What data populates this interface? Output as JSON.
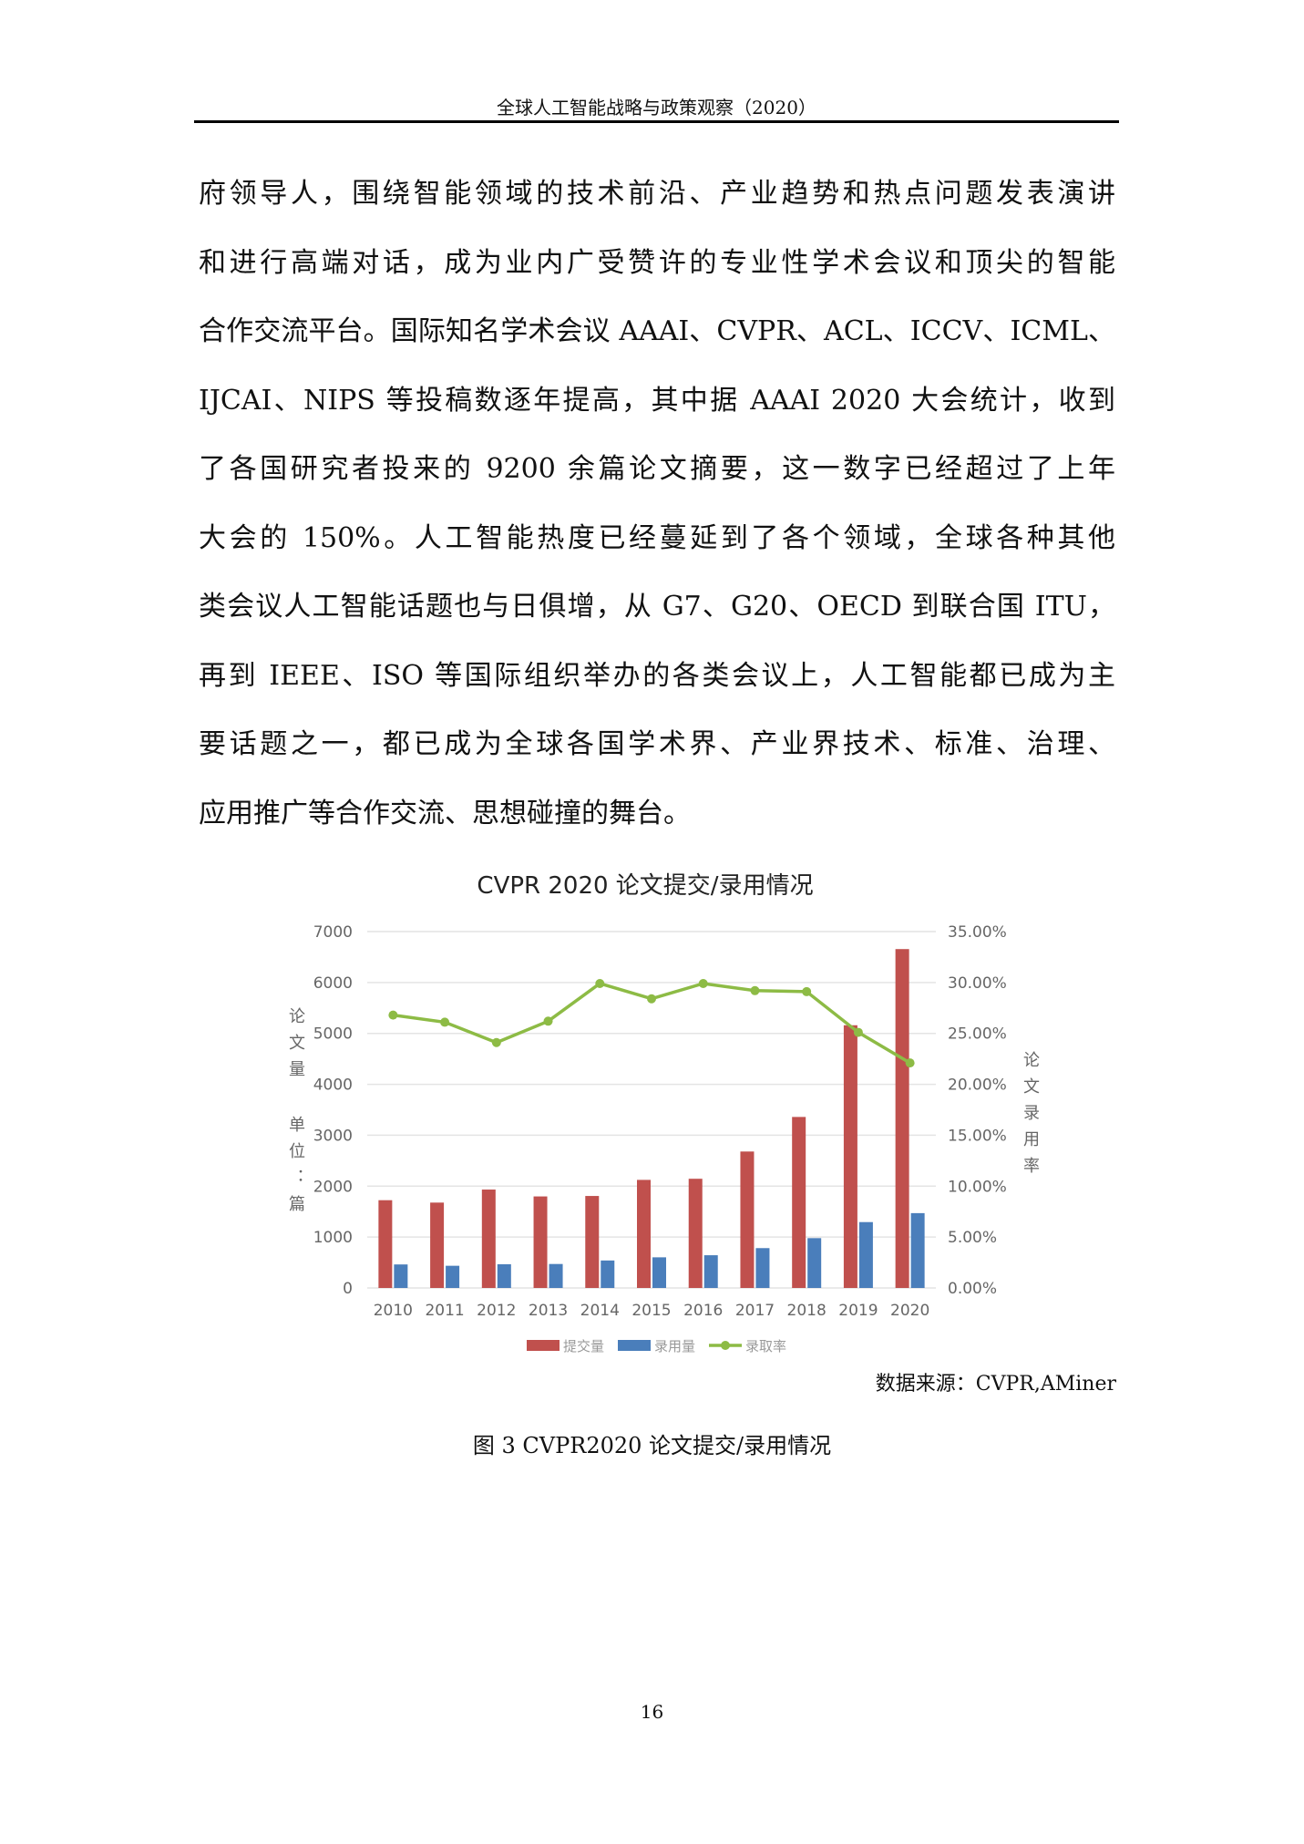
{
  "header": {
    "title": "全球人工智能战略与政策观察（2020）"
  },
  "body_lines": [
    "府领导人，围绕智能领域的技术前沿、产业趋势和热点问题发表演讲",
    "和进行高端对话，成为业内广受赞许的专业性学术会议和顶尖的智能",
    "合作交流平台。国际知名学术会议 AAAI、CVPR、ACL、ICCV、ICML、",
    "IJCAI、NIPS 等投稿数逐年提高，其中据 AAAI 2020 大会统计，收到",
    "了各国研究者投来的 9200 余篇论文摘要，这一数字已经超过了上年",
    "大会的 150%。人工智能热度已经蔓延到了各个领域，全球各种其他",
    "类会议人工智能话题也与日俱增，从 G7、G20、OECD 到联合国 ITU，",
    "再到 IEEE、ISO 等国际组织举办的各类会议上，人工智能都已成为主",
    "要话题之一，都已成为全球各国学术界、产业界技术、标准、治理、",
    "应用推广等合作交流、思想碰撞的舞台。"
  ],
  "chart_data": {
    "type": "bar",
    "title": "CVPR 2020 论文提交/录用情况",
    "ylabel": "论文量 单位：篇",
    "y2label": "论文录用率",
    "categories": [
      "2010",
      "2011",
      "2012",
      "2013",
      "2014",
      "2015",
      "2016",
      "2017",
      "2018",
      "2019",
      "2020"
    ],
    "ylim": [
      0,
      7000
    ],
    "yticks": [
      "0",
      "1000",
      "2000",
      "3000",
      "4000",
      "5000",
      "6000",
      "7000"
    ],
    "y2lim": [
      0,
      35
    ],
    "y2ticks": [
      "0.00%",
      "5.00%",
      "10.00%",
      "15.00%",
      "20.00%",
      "25.00%",
      "30.00%",
      "35.00%"
    ],
    "grid": true,
    "legend": "bottom",
    "series": [
      {
        "name": "提交量",
        "type": "bar",
        "color": "#c0504d",
        "values": [
          1724,
          1677,
          1933,
          1798,
          1807,
          2123,
          2145,
          2680,
          3359,
          5160,
          6656
        ]
      },
      {
        "name": "录用量",
        "type": "bar",
        "color": "#4a7ebb",
        "values": [
          462,
          436,
          466,
          471,
          540,
          602,
          643,
          783,
          979,
          1294,
          1470
        ]
      },
      {
        "name": "录取率",
        "type": "line",
        "axis": "right",
        "color": "#8dbb45",
        "values": [
          26.8,
          26.1,
          24.1,
          26.2,
          29.9,
          28.4,
          29.9,
          29.2,
          29.1,
          25.1,
          22.1
        ]
      }
    ]
  },
  "source": "数据来源：CVPR,AMiner",
  "caption": "图 3 CVPR2020 论文提交/录用情况",
  "page_number": "16"
}
